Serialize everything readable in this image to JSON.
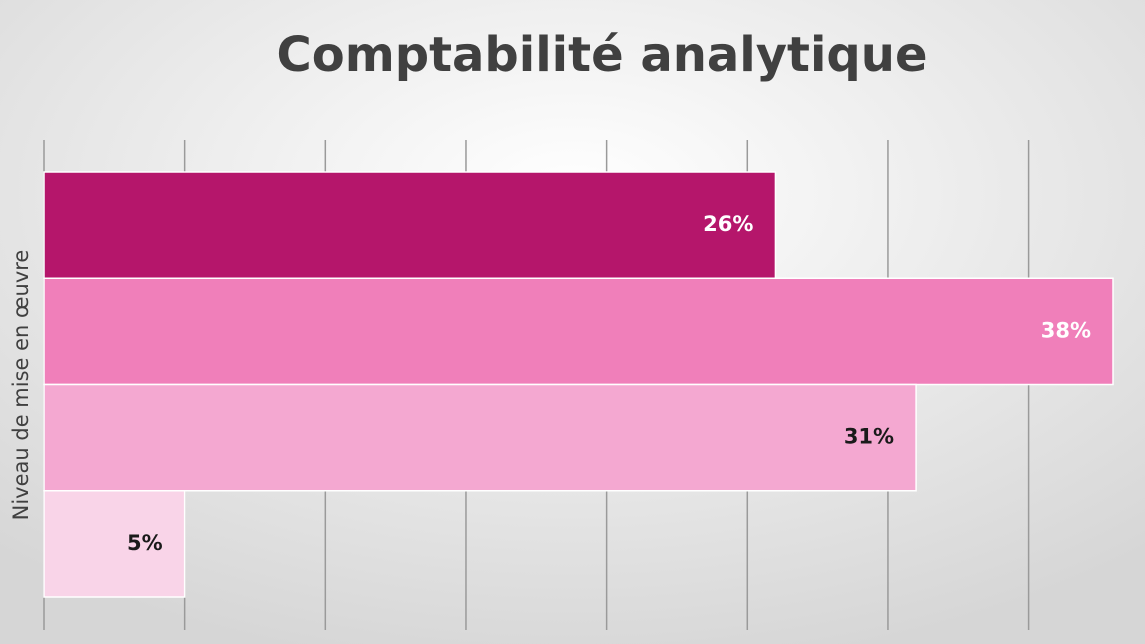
{
  "chart_data": {
    "type": "bar",
    "orientation": "horizontal",
    "title": "Comptabilité analytique",
    "y_label": "Niveau de mise en œuvre",
    "values": [
      26,
      38,
      31,
      5
    ],
    "value_labels": [
      "26%",
      "38%",
      "31%",
      "5%"
    ],
    "colors": [
      "#b5166b",
      "#f07fba",
      "#f4a8d1",
      "#f9d4e8"
    ],
    "label_colors": [
      "#ffffff",
      "#ffffff",
      "#1a1a1a",
      "#1a1a1a"
    ],
    "xlim": [
      0,
      38
    ],
    "xticks": [
      0,
      5,
      10,
      15,
      20,
      25,
      30,
      35
    ],
    "grid": true
  }
}
